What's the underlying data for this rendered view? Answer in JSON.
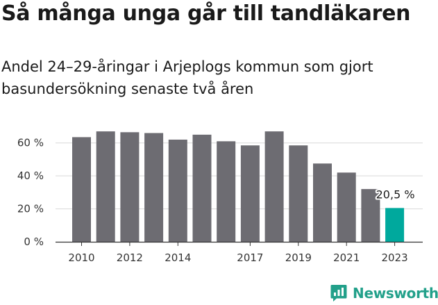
{
  "header": {
    "title": "Så många unga går till tandläkaren",
    "subtitle": "Andel 24–29-åringar i Arjeplogs kommun som gjort basundersökning senaste två åren"
  },
  "brand": {
    "name": "Newsworthy",
    "icon": "newsworthy-logo-icon"
  },
  "colors": {
    "bar": "#6d6c72",
    "highlight": "#00a99d",
    "grid": "#d9d9d9",
    "axis": "#333333"
  },
  "chart_data": {
    "type": "bar",
    "categories": [
      "2010",
      "2011",
      "2012",
      "2013",
      "2014",
      "2015",
      "2016",
      "2017",
      "2018",
      "2019",
      "2020",
      "2021",
      "2022",
      "2023"
    ],
    "values": [
      63.5,
      67,
      66.5,
      66,
      62,
      65,
      61,
      58.5,
      67,
      58.5,
      47.5,
      42,
      32,
      20.5
    ],
    "x_tick_labels": [
      "2010",
      "2012",
      "2014",
      "2017",
      "2019",
      "2021",
      "2023"
    ],
    "y_ticks": [
      0,
      20,
      40,
      60
    ],
    "y_tick_labels": [
      "0 %",
      "20 %",
      "40 %",
      "60 %"
    ],
    "ylim": [
      0,
      70
    ],
    "highlight_index": 13,
    "data_labels": [
      {
        "index": 13,
        "text": "20,5 %"
      }
    ],
    "grid": true,
    "legend": "none"
  }
}
